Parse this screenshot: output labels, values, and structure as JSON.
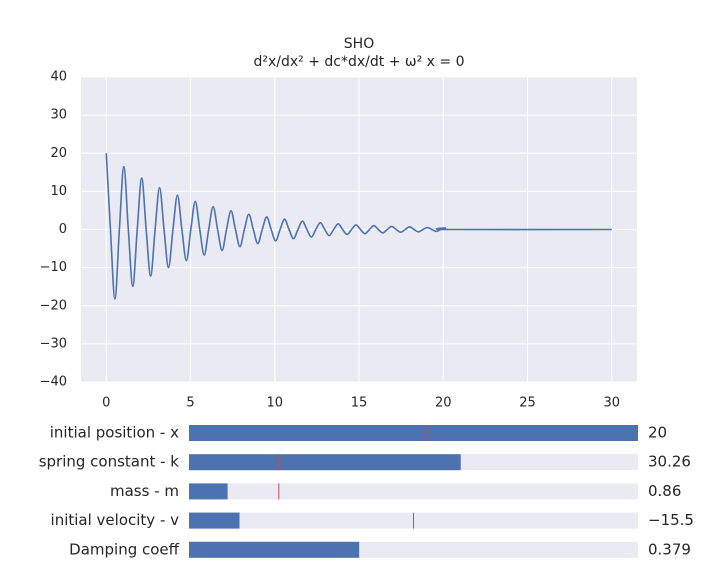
{
  "chart_data": {
    "type": "line",
    "title": "SHO",
    "subtitle": "d²x/dx² + dc*dx/dt + ω² x = 0",
    "color": "#4c72b0",
    "grid": true,
    "background": "#eaeaf2",
    "xlim": [
      -1.5,
      31.5
    ],
    "xticks": [
      0,
      5,
      10,
      15,
      20,
      25,
      30
    ],
    "ylim": [
      -40,
      40
    ],
    "yticks": [
      {
        "value": -40,
        "label": "−40"
      },
      {
        "value": -30,
        "label": "−30"
      },
      {
        "value": -20,
        "label": "−20"
      },
      {
        "value": -10,
        "label": "−10"
      },
      0,
      10,
      20,
      30,
      40
    ],
    "x": [
      0,
      0.248,
      0.513,
      0.778,
      1.043,
      1.308,
      1.573,
      1.838,
      2.103,
      2.368,
      2.633,
      2.898,
      3.163,
      3.428,
      3.693,
      3.958,
      4.223,
      4.488,
      4.753,
      5.018,
      5.283,
      5.548,
      5.813,
      6.078,
      6.342,
      6.607,
      6.872,
      7.137,
      7.402,
      7.667,
      7.932,
      8.197,
      8.462,
      8.727,
      8.992,
      9.257,
      9.522,
      9.787,
      10.052,
      10.317,
      10.582,
      10.847,
      11.112,
      11.377,
      11.642,
      11.907,
      12.172,
      12.437,
      12.702,
      12.967,
      13.232,
      13.497,
      13.762,
      14.027,
      14.292,
      14.557,
      14.822,
      15.087,
      15.352,
      15.617,
      15.882,
      16.147,
      16.412,
      16.677,
      16.942,
      17.207,
      17.472,
      17.737,
      18.002,
      18.267,
      18.532,
      18.797,
      19.062,
      19.327,
      19.592,
      19.857,
      20.122,
      20.387,
      30
    ],
    "values": [
      20,
      0,
      -18.2,
      0,
      16.5,
      0,
      -14.9,
      0,
      13.5,
      0,
      -12.2,
      0,
      11.0,
      0,
      -10.0,
      0,
      9.0,
      0,
      -8.2,
      0,
      7.4,
      0,
      -6.7,
      0,
      6.0,
      0,
      -5.5,
      0,
      4.9,
      0,
      -4.5,
      0,
      4.0,
      0,
      -3.7,
      0,
      3.3,
      0,
      -3.0,
      0,
      2.7,
      0,
      -2.4,
      0,
      2.2,
      0,
      -2.0,
      0,
      1.8,
      0,
      -1.6,
      0,
      1.5,
      0,
      -1.3,
      0,
      1.2,
      0,
      -1.1,
      0,
      1.0,
      0,
      -0.9,
      0,
      0.8,
      0,
      -0.7,
      0,
      0.7,
      0,
      -0.6,
      0,
      0.5,
      0,
      -0.5,
      0,
      0.4,
      0,
      0
    ]
  },
  "sliders": [
    {
      "label": "initial position - x",
      "value": 20,
      "range": [
        0,
        20
      ],
      "initial": 10.6
    },
    {
      "label": "spring constant - k",
      "value": 30.26,
      "range": [
        0,
        50
      ],
      "initial": 10
    },
    {
      "label": "mass - m",
      "value": 0.86,
      "range": [
        0,
        10
      ],
      "initial": 2
    },
    {
      "label": "initial velocity - v",
      "value": -15.5,
      "value_label": "−15.5",
      "range": [
        -20,
        20
      ],
      "initial": 0
    },
    {
      "label": "Damping coeff",
      "value": 0.379,
      "range": [
        0,
        1
      ]
    }
  ],
  "slider_color": "#4c72b0",
  "slider_track": "#eaeaf2",
  "initial_color": "#c44e52"
}
